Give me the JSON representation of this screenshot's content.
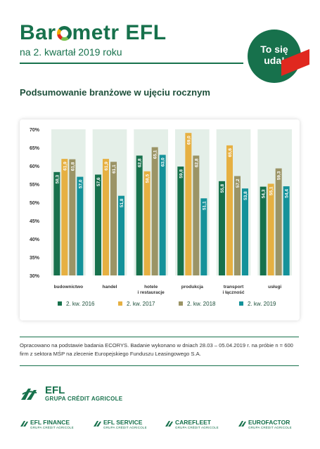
{
  "header": {
    "title_part1": "Bar",
    "title_part2": "metr EFL",
    "subtitle": "na 2. kwartał 2019 roku",
    "badge_line1": "To się",
    "badge_line2": "uda!"
  },
  "section_title": "Podsumowanie branżowe w ujęciu rocznym",
  "chart_data": {
    "type": "bar",
    "title": "",
    "xlabel": "",
    "ylabel": "",
    "ylim": [
      30,
      70
    ],
    "yticks": [
      "30%",
      "35%",
      "40%",
      "45%",
      "50%",
      "55%",
      "60%",
      "65%",
      "70%"
    ],
    "categories": [
      [
        "budownictwo"
      ],
      [
        "handel"
      ],
      [
        "hotele",
        "i restauracje"
      ],
      [
        "produkcja"
      ],
      [
        "transport",
        "i łączność"
      ],
      [
        "usługi"
      ]
    ],
    "series": [
      {
        "name": "2. kw. 2016",
        "color": "#17714c",
        "values": [
          58.3,
          57.6,
          62.8,
          59.8,
          55.8,
          54.3
        ],
        "labels": [
          "58,3",
          "57,6",
          "62,8",
          "59,8",
          "55,8",
          "54,3"
        ]
      },
      {
        "name": "2. kw. 2017",
        "color": "#e6b042",
        "values": [
          61.9,
          61.9,
          58.5,
          69.0,
          65.6,
          55.1
        ],
        "labels": [
          "61,9",
          "61,9",
          "58,5",
          "69,0",
          "65,6",
          "55,1"
        ]
      },
      {
        "name": "2. kw. 2018",
        "color": "#9b9466",
        "values": [
          61.8,
          61.1,
          65.1,
          62.8,
          57.2,
          59.3
        ],
        "labels": [
          "61,8",
          "61,1",
          "65,1",
          "62,8",
          "57,2",
          "59,3"
        ]
      },
      {
        "name": "2. kw. 2019",
        "color": "#14929a",
        "values": [
          57.0,
          51.8,
          63.0,
          51.1,
          53.8,
          54.4
        ],
        "labels": [
          "57,0",
          "51,8",
          "63,0",
          "51,1",
          "53,8",
          "54,4"
        ]
      }
    ],
    "grid": false,
    "legend": "bottom"
  },
  "footnote": "Opracowano na podstawie badania ECORYS. Badanie wykonano w dniach 28.03 – 05.04.2019 r. na próbie n = 600 firm z sektora MŚP na zlecenie Europejskiego Funduszu Leasingowego S.A.",
  "footer": {
    "efl_name": "EFL",
    "efl_group": "GRUPA CRÉDIT AGRICOLE",
    "brands": [
      {
        "name": "EFL FINANCE",
        "sub": "GRUPA CRÉDIT AGRICOLE"
      },
      {
        "name": "EFL SERVICE",
        "sub": "GRUPA CRÉDIT AGRICOLE"
      },
      {
        "name": "CAREFLEET",
        "sub": "GRUPA CRÉDIT AGRICOLE"
      },
      {
        "name": "EUROFACTOR",
        "sub": "GRUPA CRÉDIT AGRICOLE"
      }
    ]
  }
}
